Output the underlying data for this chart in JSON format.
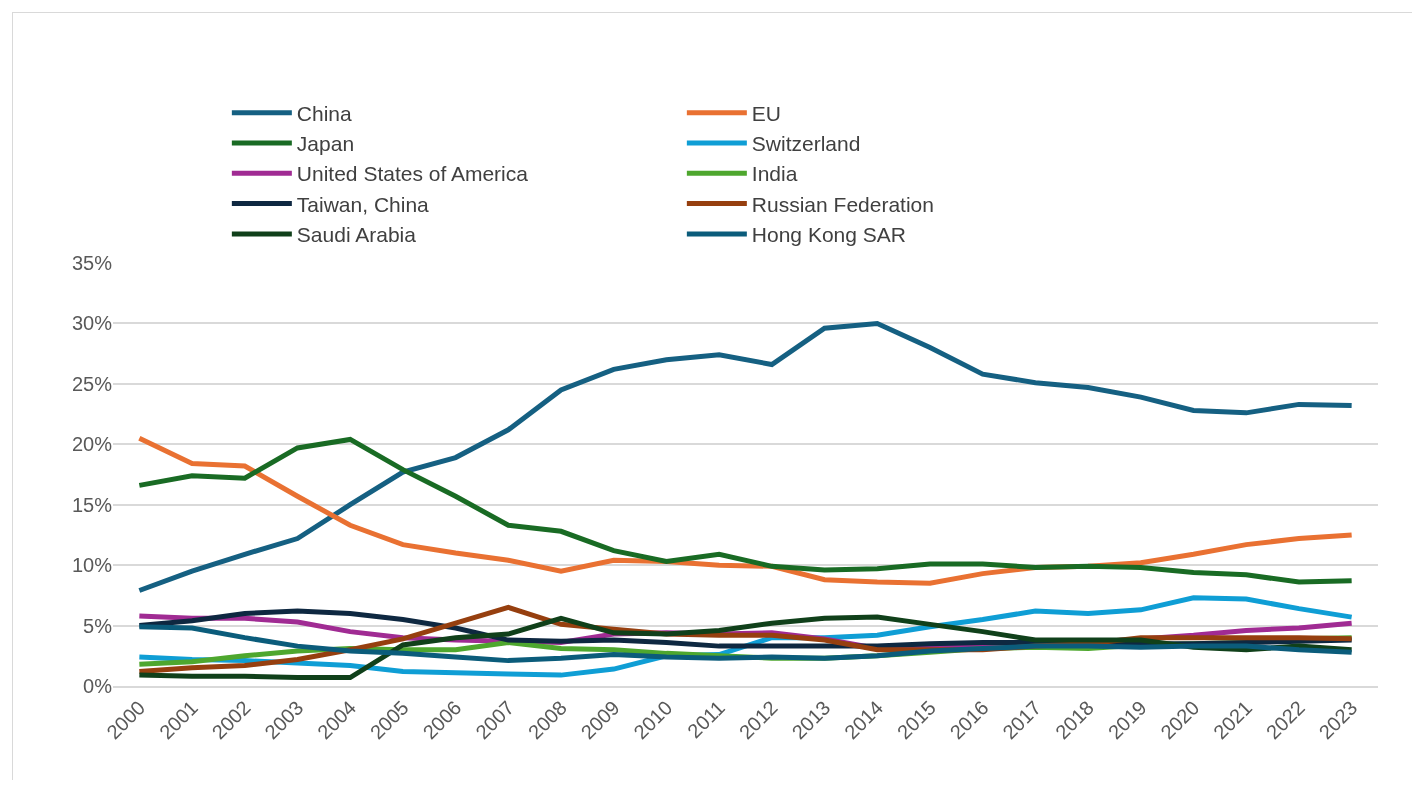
{
  "chart_data": {
    "type": "line",
    "categories": [
      "2000",
      "2001",
      "2002",
      "2003",
      "2004",
      "2005",
      "2006",
      "2007",
      "2008",
      "2009",
      "2010",
      "2011",
      "2012",
      "2013",
      "2014",
      "2015",
      "2016",
      "2017",
      "2018",
      "2019",
      "2020",
      "2021",
      "2022",
      "2023"
    ],
    "series": [
      {
        "name": "China",
        "color": "#156082",
        "values": [
          7.9,
          9.5,
          10.9,
          12.2,
          15.0,
          17.7,
          18.9,
          21.2,
          24.5,
          26.2,
          27.0,
          27.4,
          26.6,
          29.6,
          30.0,
          28.0,
          25.8,
          25.1,
          24.7,
          23.9,
          22.8,
          22.6,
          23.3,
          23.2
        ]
      },
      {
        "name": "EU",
        "color": "#e97132",
        "values": [
          20.5,
          18.4,
          18.2,
          15.7,
          13.3,
          11.7,
          11.0,
          10.4,
          9.5,
          10.4,
          10.3,
          10.0,
          9.9,
          8.8,
          8.6,
          8.5,
          9.3,
          9.8,
          9.9,
          10.2,
          10.9,
          11.7,
          12.2,
          12.5
        ]
      },
      {
        "name": "Japan",
        "color": "#196b24",
        "values": [
          16.6,
          17.4,
          17.2,
          19.7,
          20.4,
          17.9,
          15.7,
          13.3,
          12.8,
          11.2,
          10.3,
          10.9,
          9.9,
          9.6,
          9.7,
          10.1,
          10.1,
          9.8,
          9.9,
          9.8,
          9.4,
          9.2,
          8.6,
          8.7
        ]
      },
      {
        "name": "Switzerland",
        "color": "#0f9ed5",
        "values": [
          2.4,
          2.2,
          2.1,
          1.9,
          1.7,
          1.2,
          1.1,
          1.0,
          0.9,
          1.4,
          2.5,
          2.6,
          4.0,
          4.0,
          4.2,
          4.9,
          5.5,
          6.2,
          6.0,
          6.3,
          7.3,
          7.2,
          6.4,
          5.7
        ]
      },
      {
        "name": "United States of America",
        "color": "#a02b93",
        "values": [
          5.8,
          5.6,
          5.6,
          5.3,
          4.5,
          4.0,
          3.8,
          3.7,
          3.6,
          4.3,
          4.4,
          4.3,
          4.4,
          3.9,
          3.1,
          3.3,
          3.4,
          3.5,
          3.6,
          3.9,
          4.2,
          4.6,
          4.8,
          5.2
        ]
      },
      {
        "name": "India",
        "color": "#4ea72e",
        "values": [
          1.8,
          2.0,
          2.5,
          2.9,
          3.1,
          3.0,
          3.0,
          3.6,
          3.1,
          3.0,
          2.7,
          2.5,
          2.3,
          2.3,
          2.5,
          2.8,
          3.1,
          3.2,
          3.1,
          3.4,
          3.5,
          3.6,
          3.9,
          4.0
        ]
      },
      {
        "name": "Taiwan, China",
        "color": "#0e2841",
        "values": [
          5.0,
          5.4,
          6.0,
          6.2,
          6.0,
          5.5,
          4.8,
          3.8,
          3.7,
          3.8,
          3.6,
          3.3,
          3.3,
          3.3,
          3.3,
          3.5,
          3.6,
          3.6,
          3.6,
          3.5,
          3.5,
          3.6,
          3.7,
          3.8
        ]
      },
      {
        "name": "Russian Federation",
        "color": "#963f0f",
        "values": [
          1.2,
          1.5,
          1.7,
          2.2,
          3.0,
          3.9,
          5.2,
          6.5,
          5.1,
          4.7,
          4.3,
          4.2,
          4.2,
          3.8,
          3.0,
          3.0,
          3.0,
          3.3,
          3.5,
          4.0,
          4.0,
          4.0,
          4.0,
          3.9
        ]
      },
      {
        "name": "Saudi Arabia",
        "color": "#10401a",
        "values": [
          0.9,
          0.8,
          0.8,
          0.7,
          0.7,
          3.4,
          4.0,
          4.3,
          5.6,
          4.4,
          4.3,
          4.6,
          5.2,
          5.6,
          5.7,
          5.1,
          4.5,
          3.8,
          3.8,
          3.8,
          3.2,
          3.0,
          3.3,
          3.0
        ]
      },
      {
        "name": "Hong Kong SAR",
        "color": "#0b5c7b",
        "values": [
          4.9,
          4.8,
          4.0,
          3.3,
          2.9,
          2.7,
          2.4,
          2.1,
          2.3,
          2.6,
          2.4,
          2.3,
          2.4,
          2.3,
          2.5,
          2.9,
          3.1,
          3.3,
          3.3,
          3.2,
          3.3,
          3.3,
          3.0,
          2.8
        ]
      }
    ],
    "ylim": [
      0,
      35
    ],
    "yticks": [
      {
        "value": 0,
        "label": "0%"
      },
      {
        "value": 5,
        "label": "5%"
      },
      {
        "value": 10,
        "label": "10%"
      },
      {
        "value": 15,
        "label": "15%"
      },
      {
        "value": 20,
        "label": "20%"
      },
      {
        "value": 25,
        "label": "25%"
      },
      {
        "value": 30,
        "label": "30%"
      },
      {
        "value": 35,
        "label": "35%"
      }
    ],
    "grid": "y",
    "legend": "top",
    "marker": "none",
    "line_style": "solid"
  }
}
